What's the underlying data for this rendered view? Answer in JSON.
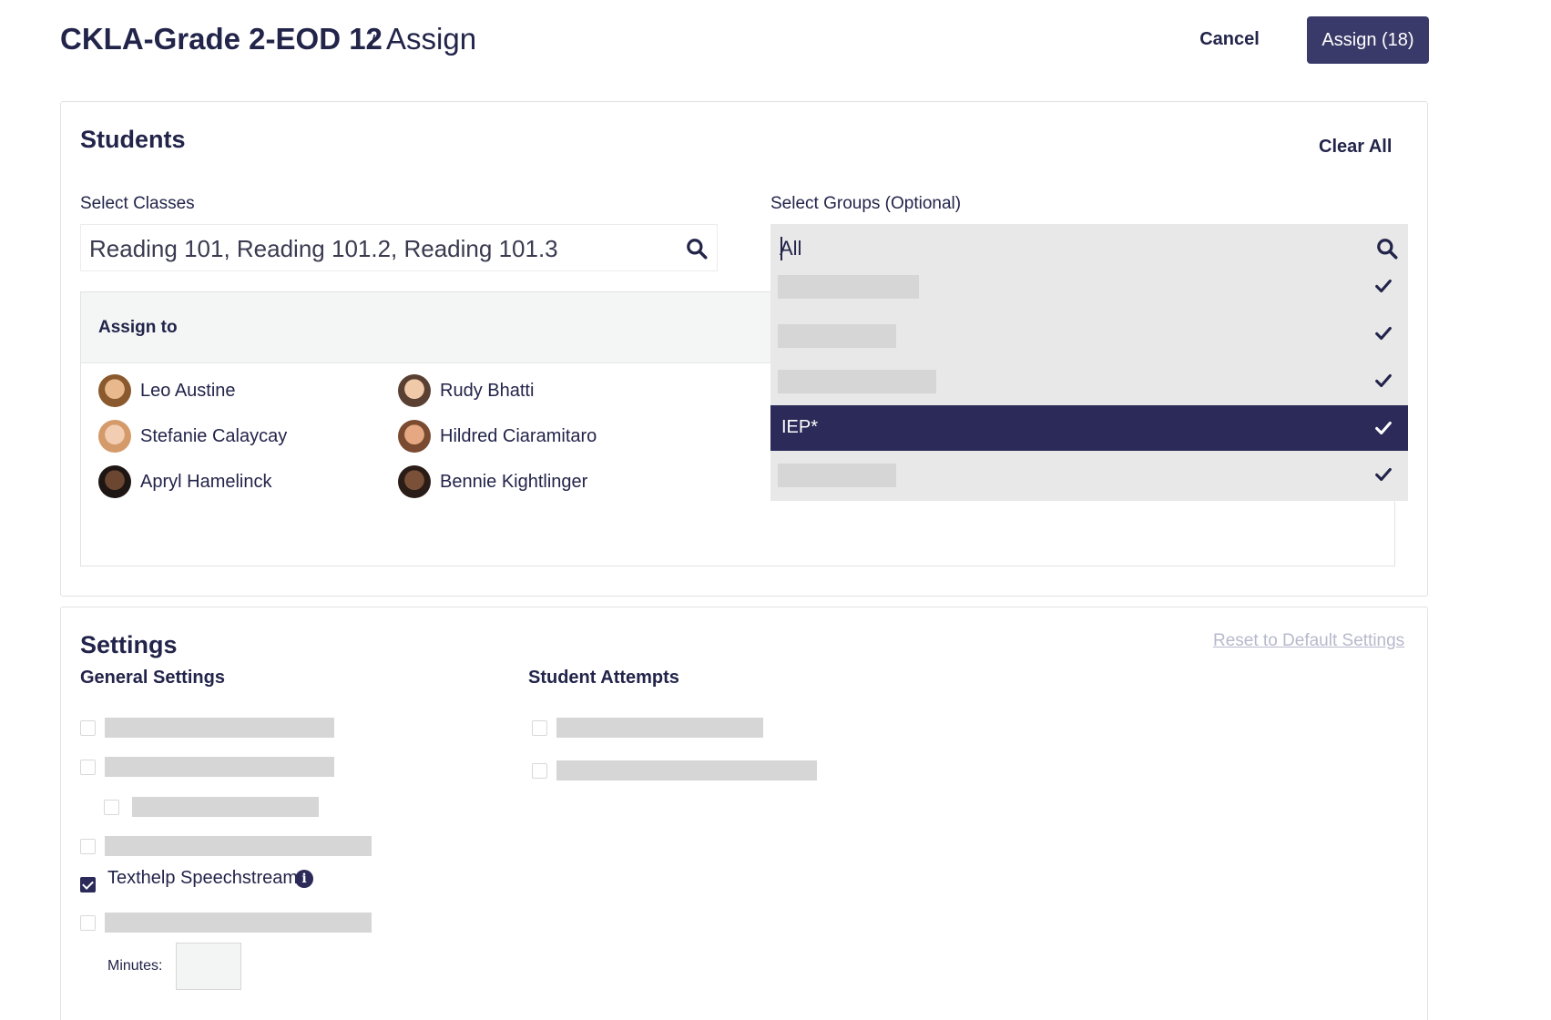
{
  "header": {
    "title": "CKLA-Grade 2-EOD 12",
    "separator": "/",
    "subtitle": "Assign",
    "cancel_label": "Cancel",
    "assign_label": "Assign (18)"
  },
  "students": {
    "heading": "Students",
    "clear_all_label": "Clear All",
    "select_classes": {
      "label": "Select Classes",
      "value": "Reading 101, Reading 101.2, Reading 101.3",
      "icon": "search-icon"
    },
    "select_groups": {
      "label": "Select Groups (Optional)",
      "value": "All",
      "icon": "search-icon",
      "options": [
        {
          "label": "",
          "checked": true,
          "selected": false
        },
        {
          "label": "",
          "checked": true,
          "selected": false
        },
        {
          "label": "",
          "checked": true,
          "selected": false
        },
        {
          "label": "IEP*",
          "checked": true,
          "selected": true
        },
        {
          "label": "",
          "checked": true,
          "selected": false
        }
      ]
    },
    "assign_to": {
      "label": "Assign to",
      "students": [
        {
          "name": "Leo Austine"
        },
        {
          "name": "Rudy Bhatti"
        },
        {
          "name": "Stefanie Calaycay"
        },
        {
          "name": "Hildred Ciaramitaro"
        },
        {
          "name": "Apryl Hamelinck"
        },
        {
          "name": "Bennie Kightlinger"
        }
      ]
    }
  },
  "settings": {
    "heading": "Settings",
    "reset_label": "Reset to Default Settings",
    "general": {
      "label": "General Settings",
      "speechstream_label": "Texthelp Speechstream",
      "speechstream_checked": true,
      "minutes_label": "Minutes:",
      "minutes_value": ""
    },
    "attempts": {
      "label": "Student Attempts"
    }
  },
  "colors": {
    "primary": "#2b2a58",
    "button": "#3a3a6a",
    "text": "#22244a",
    "placeholder_bar": "#d6d6d6",
    "dropdown_bg": "#e8e8e8",
    "link_muted": "#b7b9cc"
  }
}
